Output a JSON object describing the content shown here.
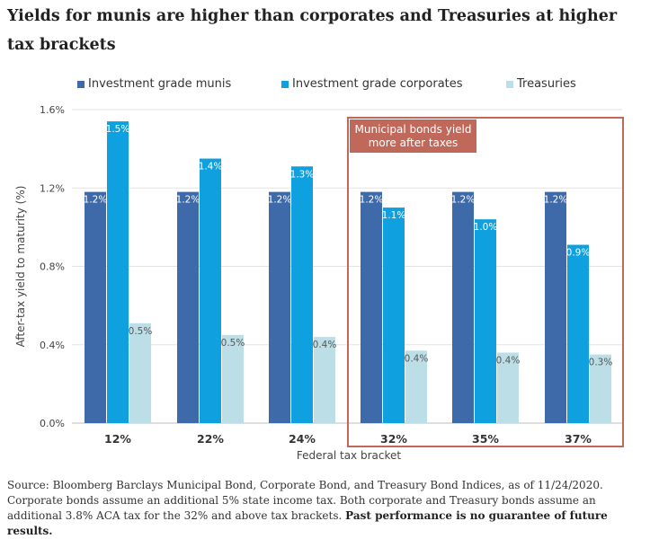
{
  "page": {
    "title": "Yields for munis are higher than corporates and Treasuries at higher tax brackets",
    "source": "Source: Bloomberg Barclays Municipal Bond, Corporate Bond, and Treasury Bond Indices, as of 11/24/2020. Corporate bonds assume an additional 5% state income tax. Both corporate and Treasury bonds assume an additional 3.8% ACA tax for the 32% and above tax brackets.",
    "disclaimer": "Past performance is no guarantee of future results."
  },
  "colors": {
    "munis": "#3f6aaa",
    "corporates": "#0ea0df",
    "treasuries": "#bcdfe7",
    "highlight": "#c0685a",
    "grid": "#e3e3e3"
  },
  "chart_data": {
    "type": "bar",
    "title": "Yields for munis are higher than corporates and Treasuries at higher tax brackets",
    "xlabel": "Federal tax bracket",
    "ylabel": "After-tax yield to maturity (%)",
    "ylim": [
      0,
      1.6
    ],
    "yticks": [
      "0.0%",
      "0.4%",
      "0.8%",
      "1.2%",
      "1.6%"
    ],
    "ytick_values": [
      0,
      0.4,
      0.8,
      1.2,
      1.6
    ],
    "categories": [
      "12%",
      "22%",
      "24%",
      "32%",
      "35%",
      "37%"
    ],
    "series": [
      {
        "name": "Investment grade munis",
        "values": [
          1.18,
          1.18,
          1.18,
          1.18,
          1.18,
          1.18
        ],
        "labels": [
          "1.2%",
          "1.2%",
          "1.2%",
          "1.2%",
          "1.2%",
          "1.2%"
        ]
      },
      {
        "name": "Investment grade corporates",
        "values": [
          1.54,
          1.35,
          1.31,
          1.1,
          1.04,
          0.91
        ],
        "labels": [
          "1.5%",
          "1.4%",
          "1.3%",
          "1.1%",
          "1.0%",
          "0.9%"
        ]
      },
      {
        "name": "Treasuries",
        "values": [
          0.51,
          0.45,
          0.44,
          0.37,
          0.36,
          0.35
        ],
        "labels": [
          "0.5%",
          "0.5%",
          "0.4%",
          "0.4%",
          "0.4%",
          "0.3%"
        ]
      }
    ],
    "annotation": {
      "text_line1": "Municipal bonds yield",
      "text_line2": "more after taxes",
      "categories_covered": [
        "32%",
        "35%",
        "37%"
      ]
    },
    "legend_position": "top"
  }
}
